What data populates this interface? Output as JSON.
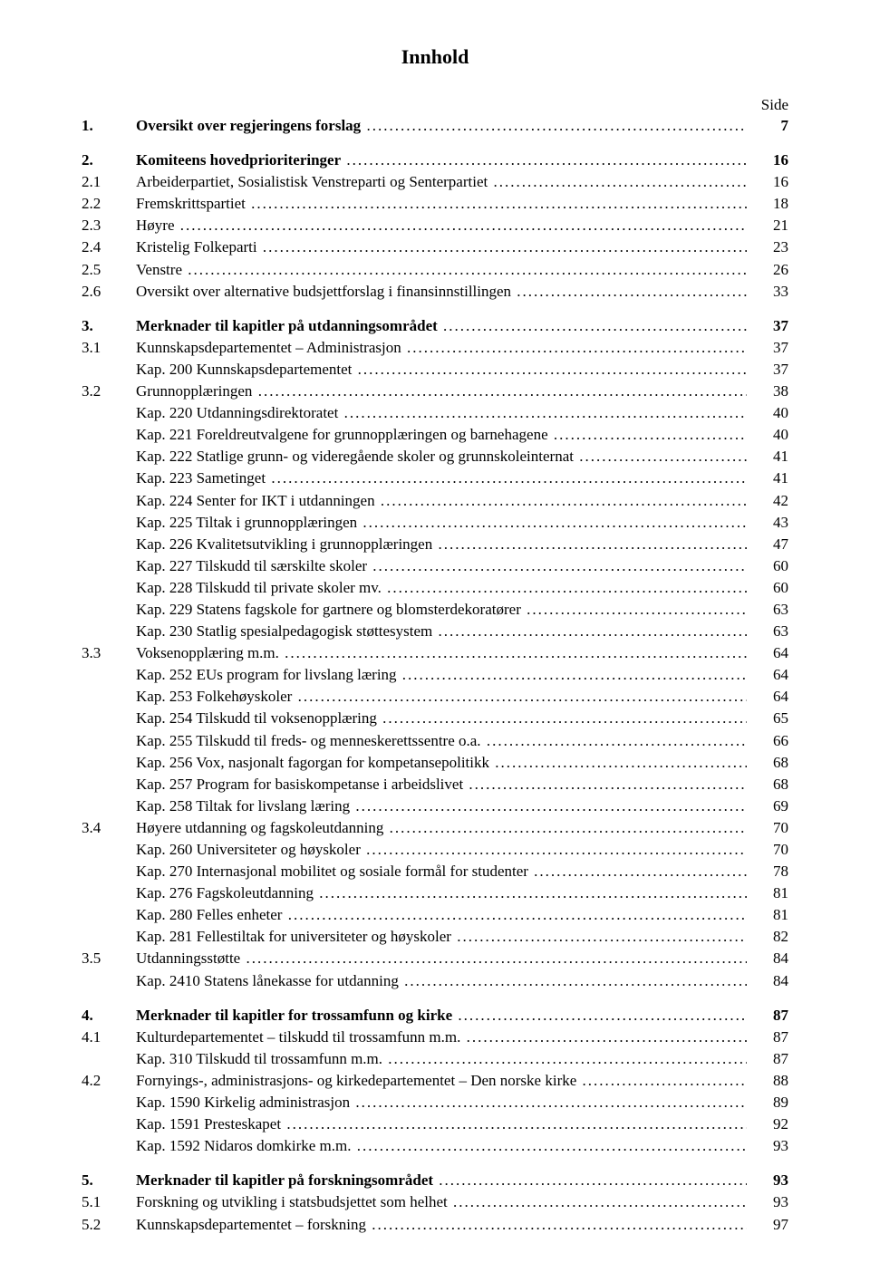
{
  "title": "Innhold",
  "side_label": "Side",
  "toc": [
    {
      "type": "row",
      "bold": true,
      "num": "1.",
      "text": "Oversikt over regjeringens forslag",
      "page": "7"
    },
    {
      "type": "gap"
    },
    {
      "type": "row",
      "bold": true,
      "num": "2.",
      "text": "Komiteens hovedprioriteringer",
      "page": "16"
    },
    {
      "type": "row",
      "num": "2.1",
      "text": "Arbeiderpartiet, Sosialistisk Venstreparti og Senterpartiet",
      "page": "16"
    },
    {
      "type": "row",
      "num": "2.2",
      "text": "Fremskrittspartiet",
      "page": "18"
    },
    {
      "type": "row",
      "num": "2.3",
      "text": "Høyre",
      "page": "21"
    },
    {
      "type": "row",
      "num": "2.4",
      "text": "Kristelig Folkeparti",
      "page": "23"
    },
    {
      "type": "row",
      "num": "2.5",
      "text": "Venstre",
      "page": "26"
    },
    {
      "type": "row",
      "num": "2.6",
      "text": "Oversikt over alternative budsjettforslag i finansinnstillingen",
      "page": "33"
    },
    {
      "type": "gap"
    },
    {
      "type": "row",
      "bold": true,
      "num": "3.",
      "text": "Merknader til kapitler på utdanningsområdet",
      "page": "37"
    },
    {
      "type": "row",
      "num": "3.1",
      "text": "Kunnskapsdepartementet – Administrasjon",
      "page": "37"
    },
    {
      "type": "kap",
      "text": "Kap. 200 Kunnskapsdepartementet",
      "page": "37"
    },
    {
      "type": "row",
      "num": "3.2",
      "text": "Grunnopplæringen",
      "page": "38"
    },
    {
      "type": "kap",
      "text": "Kap. 220 Utdanningsdirektoratet",
      "page": "40"
    },
    {
      "type": "kap",
      "text": "Kap. 221 Foreldreutvalgene for grunnopplæringen og barnehagene",
      "page": "40"
    },
    {
      "type": "kap",
      "text": "Kap. 222 Statlige grunn- og videregående skoler og grunnskoleinternat",
      "page": "41"
    },
    {
      "type": "kap",
      "text": "Kap. 223 Sametinget",
      "page": "41"
    },
    {
      "type": "kap",
      "text": "Kap. 224 Senter for IKT i utdanningen",
      "page": "42"
    },
    {
      "type": "kap",
      "text": "Kap. 225 Tiltak i grunnopplæringen",
      "page": "43"
    },
    {
      "type": "kap",
      "text": "Kap. 226 Kvalitetsutvikling i grunnopplæringen",
      "page": "47"
    },
    {
      "type": "kap",
      "text": "Kap. 227 Tilskudd til særskilte skoler",
      "page": "60"
    },
    {
      "type": "kap",
      "text": "Kap. 228 Tilskudd til private skoler mv.",
      "page": "60"
    },
    {
      "type": "kap",
      "text": "Kap. 229 Statens fagskole for gartnere og blomsterdekoratører",
      "page": "63"
    },
    {
      "type": "kap",
      "text": "Kap. 230 Statlig spesialpedagogisk støttesystem",
      "page": "63"
    },
    {
      "type": "row",
      "num": "3.3",
      "text": "Voksenopplæring m.m.",
      "page": "64"
    },
    {
      "type": "kap",
      "text": "Kap. 252 EUs program for livslang læring",
      "page": "64"
    },
    {
      "type": "kap",
      "text": "Kap. 253 Folkehøyskoler",
      "page": "64"
    },
    {
      "type": "kap",
      "text": "Kap. 254 Tilskudd til voksenopplæring",
      "page": "65"
    },
    {
      "type": "kap",
      "text": "Kap. 255 Tilskudd til freds- og menneskerettssentre o.a.",
      "page": "66"
    },
    {
      "type": "kap",
      "text": "Kap. 256 Vox, nasjonalt fagorgan for kompetansepolitikk",
      "page": "68"
    },
    {
      "type": "kap",
      "text": "Kap. 257 Program for basiskompetanse i arbeidslivet",
      "page": "68"
    },
    {
      "type": "kap",
      "text": "Kap. 258 Tiltak for livslang læring",
      "page": "69"
    },
    {
      "type": "row",
      "num": "3.4",
      "text": "Høyere utdanning og fagskoleutdanning",
      "page": "70"
    },
    {
      "type": "kap",
      "text": "Kap. 260 Universiteter og høyskoler",
      "page": "70"
    },
    {
      "type": "kap",
      "text": "Kap. 270 Internasjonal mobilitet og sosiale formål for studenter",
      "page": "78"
    },
    {
      "type": "kap",
      "text": "Kap. 276 Fagskoleutdanning",
      "page": "81"
    },
    {
      "type": "kap",
      "text": "Kap. 280 Felles enheter",
      "page": "81"
    },
    {
      "type": "kap",
      "text": "Kap. 281 Fellestiltak for universiteter og høyskoler",
      "page": "82"
    },
    {
      "type": "row",
      "num": "3.5",
      "text": "Utdanningsstøtte",
      "page": "84"
    },
    {
      "type": "kap",
      "text": "Kap. 2410 Statens lånekasse for utdanning",
      "page": "84"
    },
    {
      "type": "gap"
    },
    {
      "type": "row",
      "bold": true,
      "num": "4.",
      "text": "Merknader til kapitler for trossamfunn og kirke",
      "page": "87"
    },
    {
      "type": "row",
      "num": "4.1",
      "text": "Kulturdepartementet – tilskudd til trossamfunn m.m.",
      "page": "87"
    },
    {
      "type": "kap",
      "text": "Kap. 310 Tilskudd til trossamfunn m.m.",
      "page": "87"
    },
    {
      "type": "row",
      "num": "4.2",
      "text": "Fornyings-, administrasjons- og kirkedepartementet – Den norske kirke",
      "page": "88"
    },
    {
      "type": "kap",
      "text": "Kap. 1590 Kirkelig administrasjon",
      "page": "89"
    },
    {
      "type": "kap",
      "text": "Kap. 1591 Presteskapet",
      "page": "92"
    },
    {
      "type": "kap",
      "text": "Kap. 1592 Nidaros domkirke m.m.",
      "page": "93"
    },
    {
      "type": "gap"
    },
    {
      "type": "row",
      "bold": true,
      "num": "5.",
      "text": "Merknader til kapitler på forskningsområdet",
      "page": "93"
    },
    {
      "type": "row",
      "num": "5.1",
      "text": "Forskning og utvikling i statsbudsjettet som helhet",
      "page": "93"
    },
    {
      "type": "row",
      "num": "5.2",
      "text": "Kunnskapsdepartementet – forskning",
      "page": "97"
    }
  ]
}
